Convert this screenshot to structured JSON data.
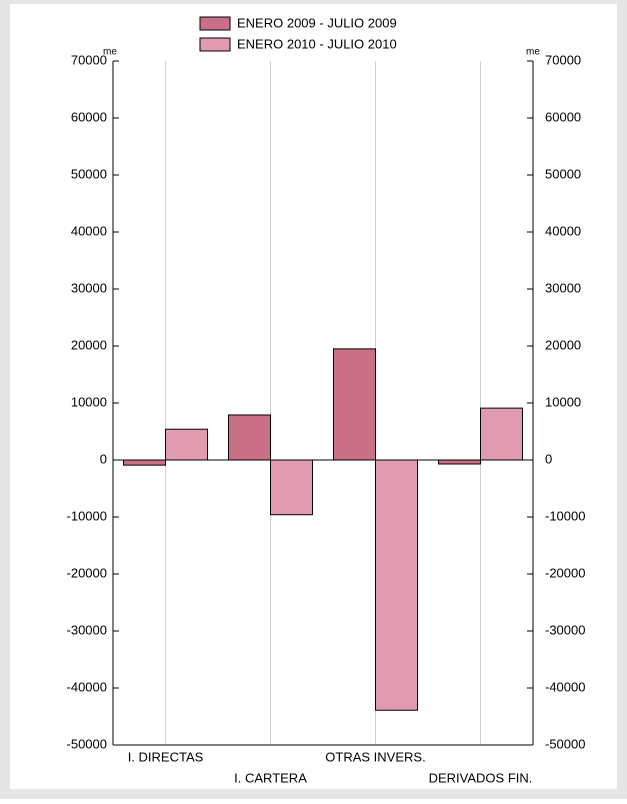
{
  "chart_data": {
    "type": "bar",
    "categories": [
      "I. DIRECTAS",
      "I. CARTERA",
      "OTRAS INVERS.",
      "DERIVADOS FIN."
    ],
    "series": [
      {
        "name": "ENERO 2009 - JULIO 2009",
        "color": "#c96f88",
        "values": [
          -900,
          7900,
          19500,
          -700
        ]
      },
      {
        "name": "ENERO 2010 - JULIO 2010",
        "color": "#e09bb1",
        "values": [
          5400,
          -9600,
          -43900,
          9100
        ]
      }
    ],
    "ylabel": "me",
    "y2label": "me",
    "ylim": [
      -50000,
      70000
    ],
    "yticks": [
      -50000,
      -40000,
      -30000,
      -20000,
      -10000,
      0,
      10000,
      20000,
      30000,
      40000,
      50000,
      60000,
      70000
    ],
    "y2lim": [
      -50000,
      70000
    ],
    "y2ticks": [
      -50000,
      -40000,
      -30000,
      -20000,
      -10000,
      0,
      10000,
      20000,
      30000,
      40000,
      50000,
      60000,
      70000
    ],
    "grid": "x",
    "legend": "top"
  }
}
